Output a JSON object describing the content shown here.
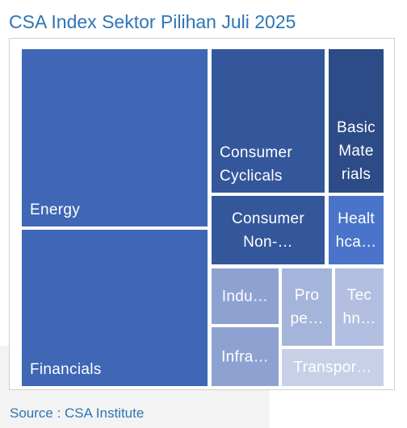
{
  "title": "CSA Index Sektor Pilihan Juli 2025",
  "source": "Source : CSA Institute",
  "chart_data": {
    "type": "treemap",
    "title": "CSA Index Sektor Pilihan Juli 2025",
    "tiles": [
      {
        "name": "Energy",
        "lines": [
          "Energy"
        ],
        "value": 25.8,
        "color": "#4067b5"
      },
      {
        "name": "Financials",
        "lines": [
          "Financials"
        ],
        "value": 23.7,
        "color": "#4067b5"
      },
      {
        "name": "Consumer Cyclicals",
        "lines": [
          "Consumer",
          "Cyclicals"
        ],
        "value": 10.9,
        "color": "#34579c"
      },
      {
        "name": "Basic Materials",
        "lines": [
          "Basic",
          "Mate",
          "rials"
        ],
        "value": 5.4,
        "color": "#2d4b87"
      },
      {
        "name": "Consumer Non-Cyclicals",
        "lines": [
          "Consumer",
          "Non-…"
        ],
        "value": 8.5,
        "color": "#34579c"
      },
      {
        "name": "Healthcare",
        "lines": [
          "Healt",
          "hca…"
        ],
        "value": 3.9,
        "color": "#4a74c9"
      },
      {
        "name": "Industrials",
        "lines": [
          "Indu…"
        ],
        "value": 4.2,
        "color": "#8ea2d2"
      },
      {
        "name": "Properties",
        "lines": [
          "Pro",
          "pe…"
        ],
        "value": 3.8,
        "color": "#a5b4da"
      },
      {
        "name": "Technology",
        "lines": [
          "Tec",
          "hn…"
        ],
        "value": 3.9,
        "color": "#b3bfe0"
      },
      {
        "name": "Infrastructure",
        "lines": [
          "Infra…"
        ],
        "value": 4.3,
        "color": "#8ea2d2"
      },
      {
        "name": "Transportation",
        "lines": [
          "Transpor…"
        ],
        "value": 2.3,
        "color": "#c8d0e8"
      }
    ]
  }
}
